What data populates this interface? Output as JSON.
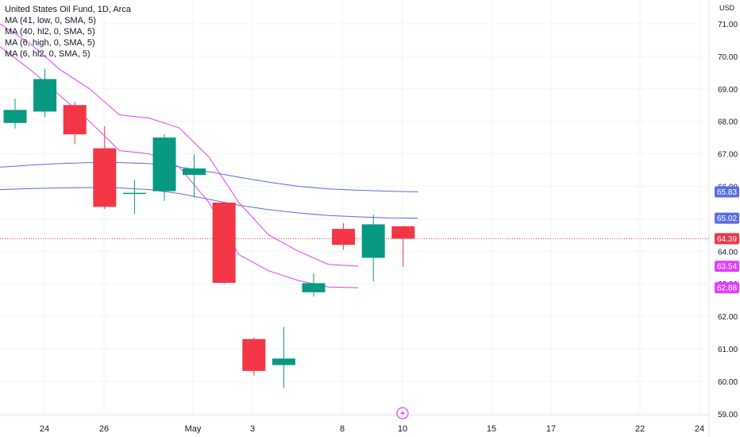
{
  "legend": {
    "title": "United States Oil Fund, 1D, Arca",
    "indicators": [
      "MA (41, low, 0, SMA, 5)",
      "MA (40, hl2, 0, SMA, 5)",
      "MA (6, high, 0, SMA, 5)",
      "MA (6, hl2, 0, SMA, 5)"
    ]
  },
  "colors": {
    "up": "#26a69a",
    "up_body": "#089981",
    "down": "#f23645",
    "ma_long": "#5b6ee1",
    "ma_short": "#e040fb",
    "grid": "#f0f3fa",
    "axis_text": "#131722",
    "last_price": "#f23645"
  },
  "chart_data": {
    "type": "candlestick",
    "currency": "USD",
    "ylim": [
      58.8,
      71.4
    ],
    "y_ticks": [
      "71.00",
      "70.00",
      "69.00",
      "68.00",
      "67.00",
      "66.00",
      "65.00",
      "64.00",
      "63.00",
      "62.00",
      "61.00",
      "60.00",
      "59.00"
    ],
    "x_ticks": [
      "24",
      "26",
      "May",
      "3",
      "8",
      "10",
      "15",
      "17",
      "22",
      "24"
    ],
    "candles": [
      {
        "o": 67.95,
        "h": 68.7,
        "l": 67.78,
        "c": 68.35
      },
      {
        "o": 68.3,
        "h": 69.62,
        "l": 68.14,
        "c": 69.3
      },
      {
        "o": 68.5,
        "h": 68.6,
        "l": 67.3,
        "c": 67.6
      },
      {
        "o": 67.17,
        "h": 67.85,
        "l": 65.3,
        "c": 65.37
      },
      {
        "o": 65.8,
        "h": 66.2,
        "l": 65.15,
        "c": 65.8
      },
      {
        "o": 65.85,
        "h": 67.6,
        "l": 65.55,
        "c": 67.5
      },
      {
        "o": 66.35,
        "h": 66.98,
        "l": 65.65,
        "c": 66.55
      },
      {
        "o": 65.5,
        "h": 65.5,
        "l": 63.0,
        "c": 63.03
      },
      {
        "o": 61.3,
        "h": 61.35,
        "l": 60.17,
        "c": 60.32
      },
      {
        "o": 60.5,
        "h": 61.67,
        "l": 59.8,
        "c": 60.7
      },
      {
        "o": 62.74,
        "h": 63.32,
        "l": 62.6,
        "c": 63.02
      },
      {
        "o": 64.69,
        "h": 64.87,
        "l": 64.05,
        "c": 64.2
      },
      {
        "o": 63.8,
        "h": 65.13,
        "l": 63.07,
        "c": 64.83
      },
      {
        "o": 64.77,
        "h": 64.77,
        "l": 63.52,
        "c": 64.39
      }
    ],
    "series": [
      {
        "values": [
          66.59,
          66.65,
          66.7,
          66.73,
          66.73,
          66.7,
          66.6,
          66.45,
          66.28,
          66.13,
          66.0,
          65.92,
          65.88,
          65.85,
          65.83
        ]
      },
      {
        "values": [
          65.9,
          65.93,
          65.95,
          65.96,
          65.95,
          65.9,
          65.78,
          65.6,
          65.42,
          65.28,
          65.18,
          65.1,
          65.06,
          65.03,
          65.02
        ]
      },
      {
        "values": [
          71.0,
          70.4,
          69.6,
          69.0,
          68.2,
          68.1,
          67.8,
          66.9,
          65.5,
          64.5,
          64.0,
          63.6,
          63.54
        ]
      },
      {
        "values": [
          70.3,
          69.6,
          68.8,
          68.0,
          67.1,
          67.0,
          66.6,
          65.5,
          63.9,
          63.4,
          63.1,
          62.9,
          62.88
        ]
      }
    ],
    "price_labels": [
      {
        "value": 65.83,
        "text": "65.83"
      },
      {
        "value": 65.02,
        "text": "65.02"
      },
      {
        "value": 64.39,
        "text": "64.39"
      },
      {
        "value": 63.54,
        "text": "63.54"
      },
      {
        "value": 62.88,
        "text": "62.88"
      }
    ],
    "last_price": 64.39
  }
}
